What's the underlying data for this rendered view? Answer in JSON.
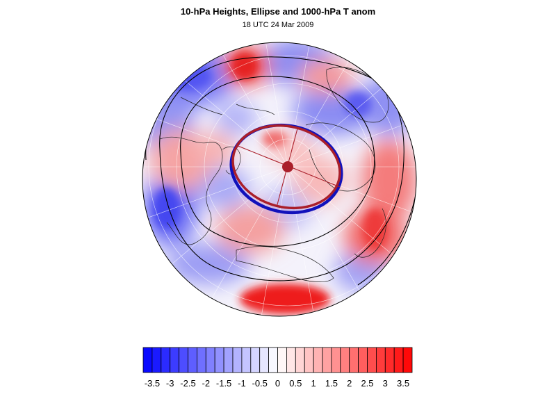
{
  "title": "10-hPa Heights, Ellipse and 1000-hPa T anom",
  "subtitle": "18 UTC 24 Mar 2009",
  "colorbar": {
    "tick_labels": [
      "-3.5",
      "-3",
      "-2.5",
      "-2",
      "-1.5",
      "-1",
      "-0.5",
      "0",
      "0.5",
      "1",
      "1.5",
      "2",
      "2.5",
      "3",
      "3.5"
    ],
    "min": -3.75,
    "max": 3.75,
    "n_bins": 30
  },
  "colors": {
    "cold": "#0000ff",
    "warm": "#ff0000",
    "neutral": "#ffffff",
    "ellipse_fit": "#aa1f2a",
    "vortex_edge": "#1111bb",
    "contour": "#000000"
  },
  "projection": "north-polar-stereographic"
}
